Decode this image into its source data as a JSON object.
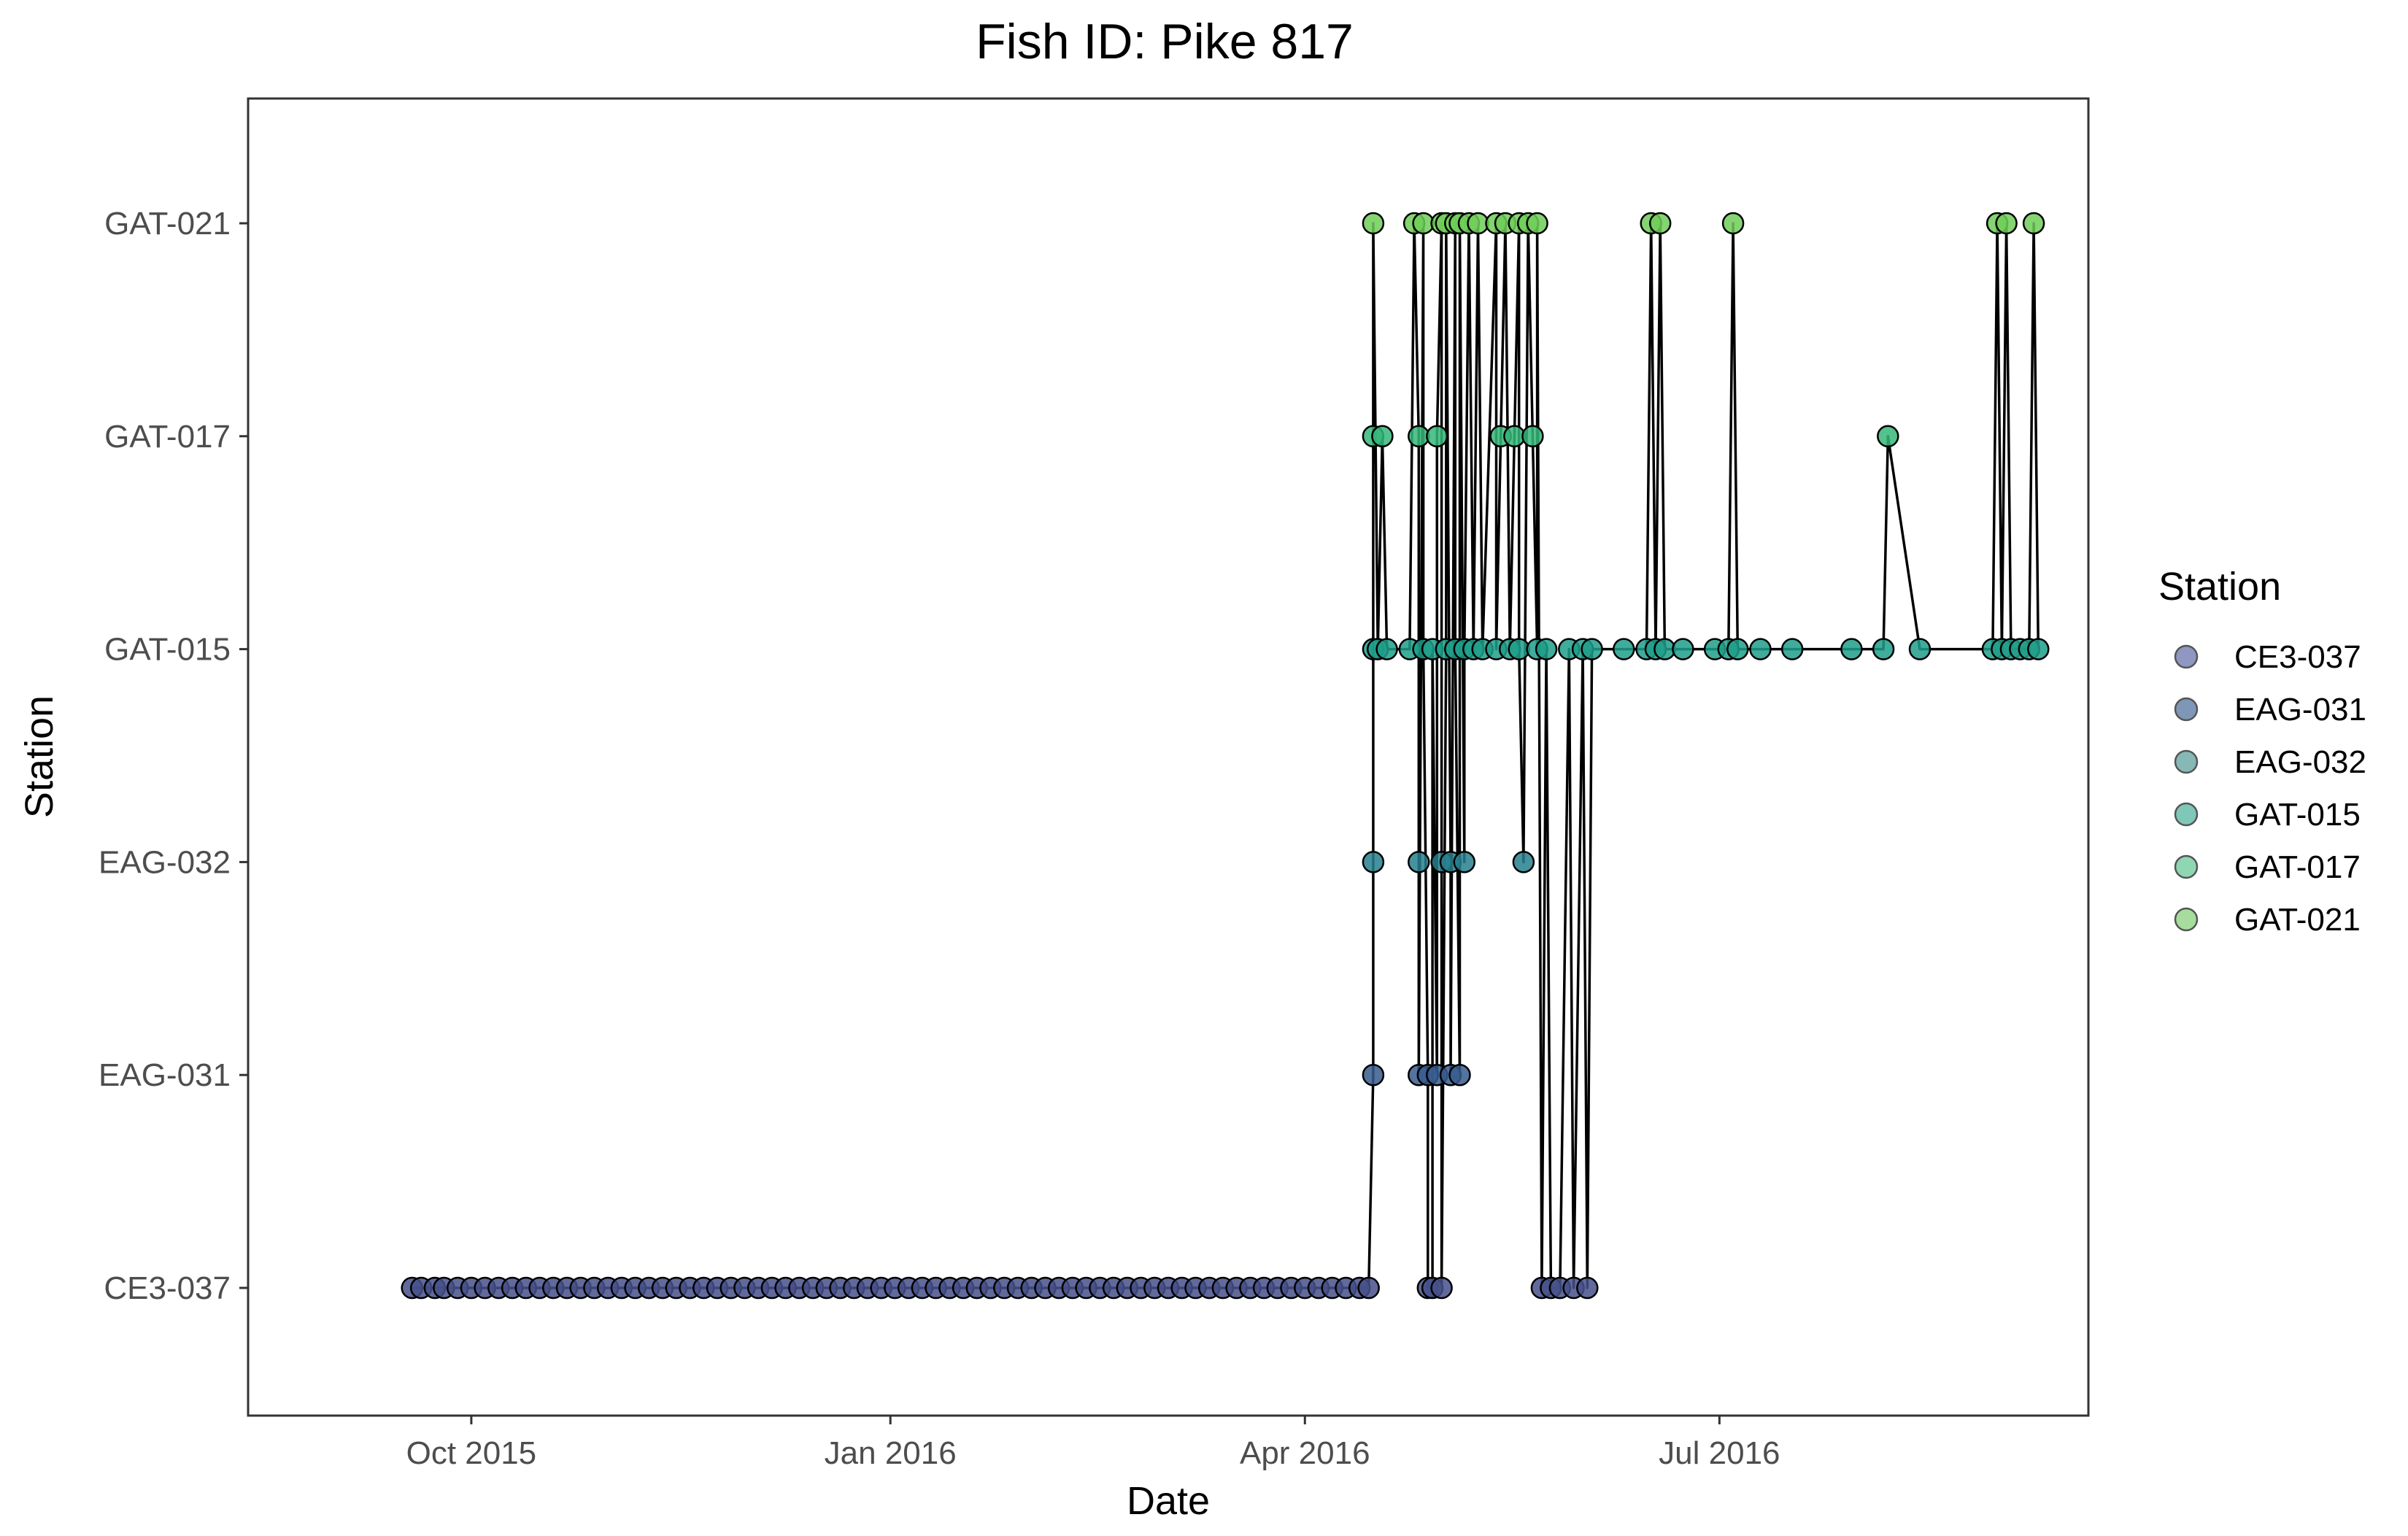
{
  "chart_data": {
    "type": "scatter",
    "title": "Fish ID: Pike 817",
    "xlabel": "Date",
    "ylabel": "Station",
    "x_ticks": [
      "Oct 2015",
      "Jan 2016",
      "Apr 2016",
      "Jul 2016"
    ],
    "x_tick_dates": [
      "2015-10-01",
      "2016-01-01",
      "2016-04-01",
      "2016-07-01"
    ],
    "xlim": [
      "2015-08-13",
      "2016-09-20"
    ],
    "categories": [
      "CE3-037",
      "EAG-031",
      "EAG-032",
      "GAT-015",
      "GAT-017",
      "GAT-021"
    ],
    "grid": false,
    "legend": {
      "title": "Station",
      "position": "right",
      "entries": [
        "CE3-037",
        "EAG-031",
        "EAG-032",
        "GAT-015",
        "GAT-017",
        "GAT-021"
      ]
    },
    "colors": {
      "CE3-037": "#46508a",
      "EAG-031": "#365c8d",
      "EAG-032": "#277f8e",
      "GAT-015": "#1f9e89",
      "GAT-017": "#35b779",
      "GAT-021": "#6ece58",
      "line": "#000000"
    },
    "points": [
      [
        "2015-09-18",
        "CE3-037"
      ],
      [
        "2015-09-20",
        "CE3-037"
      ],
      [
        "2015-09-23",
        "CE3-037"
      ],
      [
        "2015-09-25",
        "CE3-037"
      ],
      [
        "2015-09-28",
        "CE3-037"
      ],
      [
        "2015-10-01",
        "CE3-037"
      ],
      [
        "2015-10-04",
        "CE3-037"
      ],
      [
        "2015-10-07",
        "CE3-037"
      ],
      [
        "2015-10-10",
        "CE3-037"
      ],
      [
        "2015-10-13",
        "CE3-037"
      ],
      [
        "2015-10-16",
        "CE3-037"
      ],
      [
        "2015-10-19",
        "CE3-037"
      ],
      [
        "2015-10-22",
        "CE3-037"
      ],
      [
        "2015-10-25",
        "CE3-037"
      ],
      [
        "2015-10-28",
        "CE3-037"
      ],
      [
        "2015-10-31",
        "CE3-037"
      ],
      [
        "2015-11-03",
        "CE3-037"
      ],
      [
        "2015-11-06",
        "CE3-037"
      ],
      [
        "2015-11-09",
        "CE3-037"
      ],
      [
        "2015-11-12",
        "CE3-037"
      ],
      [
        "2015-11-15",
        "CE3-037"
      ],
      [
        "2015-11-18",
        "CE3-037"
      ],
      [
        "2015-11-21",
        "CE3-037"
      ],
      [
        "2015-11-24",
        "CE3-037"
      ],
      [
        "2015-11-27",
        "CE3-037"
      ],
      [
        "2015-11-30",
        "CE3-037"
      ],
      [
        "2015-12-03",
        "CE3-037"
      ],
      [
        "2015-12-06",
        "CE3-037"
      ],
      [
        "2015-12-09",
        "CE3-037"
      ],
      [
        "2015-12-12",
        "CE3-037"
      ],
      [
        "2015-12-15",
        "CE3-037"
      ],
      [
        "2015-12-18",
        "CE3-037"
      ],
      [
        "2015-12-21",
        "CE3-037"
      ],
      [
        "2015-12-24",
        "CE3-037"
      ],
      [
        "2015-12-27",
        "CE3-037"
      ],
      [
        "2015-12-30",
        "CE3-037"
      ],
      [
        "2016-01-02",
        "CE3-037"
      ],
      [
        "2016-01-05",
        "CE3-037"
      ],
      [
        "2016-01-08",
        "CE3-037"
      ],
      [
        "2016-01-11",
        "CE3-037"
      ],
      [
        "2016-01-14",
        "CE3-037"
      ],
      [
        "2016-01-17",
        "CE3-037"
      ],
      [
        "2016-01-20",
        "CE3-037"
      ],
      [
        "2016-01-23",
        "CE3-037"
      ],
      [
        "2016-01-26",
        "CE3-037"
      ],
      [
        "2016-01-29",
        "CE3-037"
      ],
      [
        "2016-02-01",
        "CE3-037"
      ],
      [
        "2016-02-04",
        "CE3-037"
      ],
      [
        "2016-02-07",
        "CE3-037"
      ],
      [
        "2016-02-10",
        "CE3-037"
      ],
      [
        "2016-02-13",
        "CE3-037"
      ],
      [
        "2016-02-16",
        "CE3-037"
      ],
      [
        "2016-02-19",
        "CE3-037"
      ],
      [
        "2016-02-22",
        "CE3-037"
      ],
      [
        "2016-02-25",
        "CE3-037"
      ],
      [
        "2016-02-28",
        "CE3-037"
      ],
      [
        "2016-03-02",
        "CE3-037"
      ],
      [
        "2016-03-05",
        "CE3-037"
      ],
      [
        "2016-03-08",
        "CE3-037"
      ],
      [
        "2016-03-11",
        "CE3-037"
      ],
      [
        "2016-03-14",
        "CE3-037"
      ],
      [
        "2016-03-17",
        "CE3-037"
      ],
      [
        "2016-03-20",
        "CE3-037"
      ],
      [
        "2016-03-23",
        "CE3-037"
      ],
      [
        "2016-03-26",
        "CE3-037"
      ],
      [
        "2016-03-29",
        "CE3-037"
      ],
      [
        "2016-04-01",
        "CE3-037"
      ],
      [
        "2016-04-04",
        "CE3-037"
      ],
      [
        "2016-04-07",
        "CE3-037"
      ],
      [
        "2016-04-10",
        "CE3-037"
      ],
      [
        "2016-04-13",
        "CE3-037"
      ],
      [
        "2016-04-15",
        "CE3-037"
      ],
      [
        "2016-04-16",
        "EAG-031"
      ],
      [
        "2016-04-16",
        "EAG-032"
      ],
      [
        "2016-04-16",
        "GAT-015"
      ],
      [
        "2016-04-16",
        "GAT-017"
      ],
      [
        "2016-04-16",
        "GAT-021"
      ],
      [
        "2016-04-17",
        "GAT-015"
      ],
      [
        "2016-04-18",
        "GAT-017"
      ],
      [
        "2016-04-19",
        "GAT-015"
      ],
      [
        "2016-04-24",
        "GAT-015"
      ],
      [
        "2016-04-25",
        "GAT-021"
      ],
      [
        "2016-04-26",
        "GAT-017"
      ],
      [
        "2016-04-26",
        "EAG-032"
      ],
      [
        "2016-04-26",
        "EAG-031"
      ],
      [
        "2016-04-27",
        "GAT-021"
      ],
      [
        "2016-04-27",
        "GAT-015"
      ],
      [
        "2016-04-28",
        "EAG-031"
      ],
      [
        "2016-04-28",
        "CE3-037"
      ],
      [
        "2016-04-29",
        "CE3-037"
      ],
      [
        "2016-04-29",
        "GAT-015"
      ],
      [
        "2016-04-30",
        "EAG-031"
      ],
      [
        "2016-04-30",
        "GAT-017"
      ],
      [
        "2016-05-01",
        "GAT-021"
      ],
      [
        "2016-05-01",
        "EAG-032"
      ],
      [
        "2016-05-01",
        "CE3-037"
      ],
      [
        "2016-05-02",
        "GAT-015"
      ],
      [
        "2016-05-02",
        "GAT-021"
      ],
      [
        "2016-05-03",
        "EAG-032"
      ],
      [
        "2016-05-03",
        "EAG-031"
      ],
      [
        "2016-05-04",
        "GAT-021"
      ],
      [
        "2016-05-04",
        "GAT-015"
      ],
      [
        "2016-05-05",
        "EAG-031"
      ],
      [
        "2016-05-05",
        "GAT-021"
      ],
      [
        "2016-05-06",
        "EAG-032"
      ],
      [
        "2016-05-06",
        "GAT-015"
      ],
      [
        "2016-05-07",
        "GAT-021"
      ],
      [
        "2016-05-08",
        "GAT-015"
      ],
      [
        "2016-05-09",
        "GAT-021"
      ],
      [
        "2016-05-10",
        "GAT-015"
      ],
      [
        "2016-05-13",
        "GAT-021"
      ],
      [
        "2016-05-13",
        "GAT-015"
      ],
      [
        "2016-05-14",
        "GAT-017"
      ],
      [
        "2016-05-15",
        "GAT-021"
      ],
      [
        "2016-05-16",
        "GAT-015"
      ],
      [
        "2016-05-17",
        "GAT-017"
      ],
      [
        "2016-05-18",
        "GAT-021"
      ],
      [
        "2016-05-18",
        "GAT-015"
      ],
      [
        "2016-05-19",
        "EAG-032"
      ],
      [
        "2016-05-20",
        "GAT-021"
      ],
      [
        "2016-05-21",
        "GAT-017"
      ],
      [
        "2016-05-22",
        "GAT-015"
      ],
      [
        "2016-05-22",
        "GAT-021"
      ],
      [
        "2016-05-23",
        "CE3-037"
      ],
      [
        "2016-05-24",
        "GAT-015"
      ],
      [
        "2016-05-25",
        "CE3-037"
      ],
      [
        "2016-05-27",
        "CE3-037"
      ],
      [
        "2016-05-29",
        "GAT-015"
      ],
      [
        "2016-05-30",
        "CE3-037"
      ],
      [
        "2016-06-01",
        "GAT-015"
      ],
      [
        "2016-06-02",
        "CE3-037"
      ],
      [
        "2016-06-03",
        "GAT-015"
      ],
      [
        "2016-06-10",
        "GAT-015"
      ],
      [
        "2016-06-15",
        "GAT-015"
      ],
      [
        "2016-06-16",
        "GAT-021"
      ],
      [
        "2016-06-17",
        "GAT-015"
      ],
      [
        "2016-06-18",
        "GAT-021"
      ],
      [
        "2016-06-19",
        "GAT-015"
      ],
      [
        "2016-06-23",
        "GAT-015"
      ],
      [
        "2016-06-30",
        "GAT-015"
      ],
      [
        "2016-07-03",
        "GAT-015"
      ],
      [
        "2016-07-04",
        "GAT-021"
      ],
      [
        "2016-07-05",
        "GAT-015"
      ],
      [
        "2016-07-10",
        "GAT-015"
      ],
      [
        "2016-07-17",
        "GAT-015"
      ],
      [
        "2016-07-30",
        "GAT-015"
      ],
      [
        "2016-08-06",
        "GAT-015"
      ],
      [
        "2016-08-07",
        "GAT-017"
      ],
      [
        "2016-08-14",
        "GAT-015"
      ],
      [
        "2016-08-30",
        "GAT-015"
      ],
      [
        "2016-08-31",
        "GAT-021"
      ],
      [
        "2016-09-01",
        "GAT-015"
      ],
      [
        "2016-09-02",
        "GAT-021"
      ],
      [
        "2016-09-03",
        "GAT-015"
      ],
      [
        "2016-09-05",
        "GAT-015"
      ],
      [
        "2016-09-07",
        "GAT-015"
      ],
      [
        "2016-09-08",
        "GAT-021"
      ],
      [
        "2016-09-09",
        "GAT-015"
      ]
    ]
  }
}
